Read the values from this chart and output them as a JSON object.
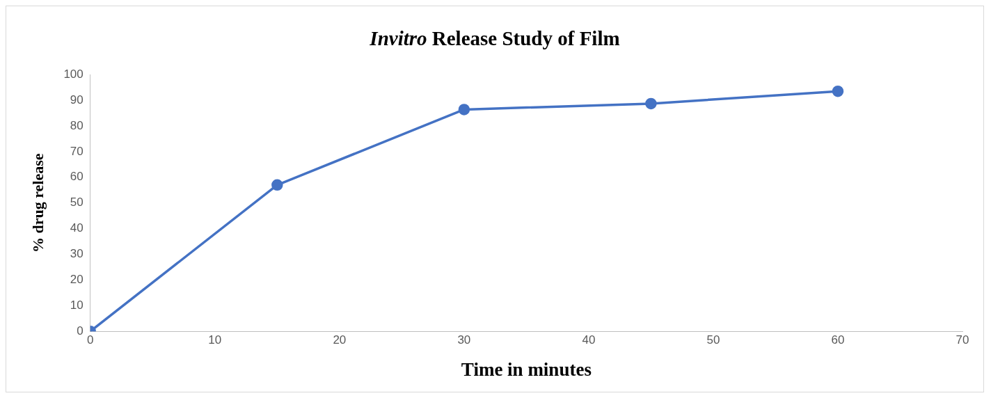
{
  "chart_data": {
    "type": "line",
    "title": "Invitro Release Study of Film",
    "xlabel": "Time in minutes",
    "ylabel": "% drug release",
    "x": [
      0,
      15,
      30,
      45,
      60
    ],
    "series": [
      {
        "color": "#4472c4",
        "values": [
          0,
          57,
          86.4,
          88.7,
          93.5
        ]
      }
    ],
    "xlim": [
      0,
      70
    ],
    "xticks": [
      0,
      10,
      20,
      30,
      40,
      50,
      60,
      70
    ],
    "ylim": [
      0,
      100
    ],
    "yticks": [
      0,
      10,
      20,
      30,
      40,
      50,
      60,
      70,
      80,
      90,
      100
    ],
    "grid": false,
    "legend": false,
    "marker": "circle",
    "line_style": "solid"
  }
}
